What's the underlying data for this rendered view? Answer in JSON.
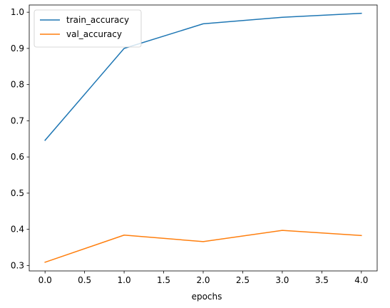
{
  "chart_data": {
    "type": "line",
    "title": "",
    "xlabel": "epochs",
    "ylabel": "",
    "xlim": [
      -0.2,
      4.2
    ],
    "ylim": [
      0.285,
      1.02
    ],
    "x": [
      0,
      1,
      2,
      3,
      4
    ],
    "x_ticks": [
      0.0,
      0.5,
      1.0,
      1.5,
      2.0,
      2.5,
      3.0,
      3.5,
      4.0
    ],
    "x_tick_labels": [
      "0.0",
      "0.5",
      "1.0",
      "1.5",
      "2.0",
      "2.5",
      "3.0",
      "3.5",
      "4.0"
    ],
    "y_ticks": [
      0.3,
      0.4,
      0.5,
      0.6,
      0.7,
      0.8,
      0.9,
      1.0
    ],
    "y_tick_labels": [
      "0.3",
      "0.4",
      "0.5",
      "0.6",
      "0.7",
      "0.8",
      "0.9",
      "1.0"
    ],
    "grid": false,
    "legend_position": "upper-left",
    "series": [
      {
        "name": "train_accuracy",
        "color": "#1f77b4",
        "values": [
          0.646,
          0.9,
          0.968,
          0.986,
          0.997
        ]
      },
      {
        "name": "val_accuracy",
        "color": "#ff7f0e",
        "values": [
          0.309,
          0.384,
          0.366,
          0.397,
          0.383
        ]
      }
    ]
  }
}
